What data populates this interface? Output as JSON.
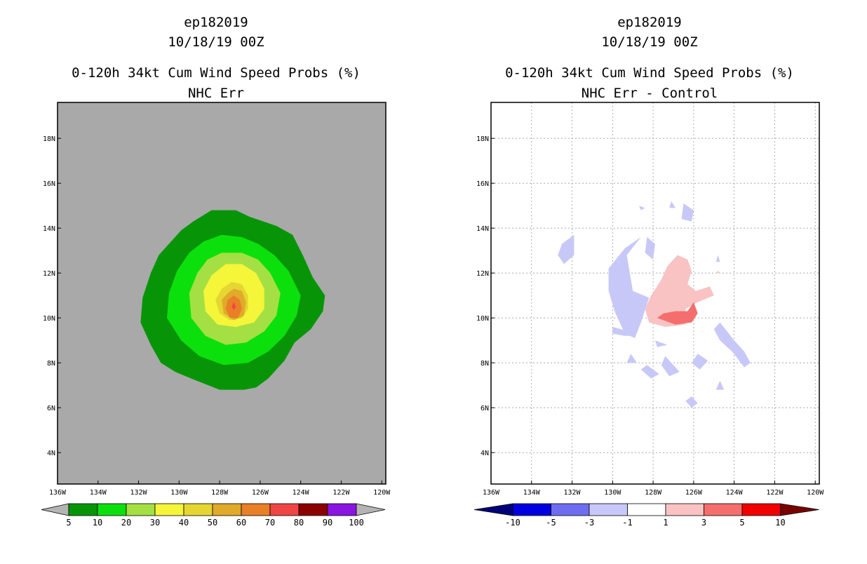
{
  "chart_data": [
    {
      "type": "filled-contour-map",
      "title_lines": [
        "ep182019",
        "10/18/19 00Z",
        "0-120h 34kt Cum Wind Speed Probs (%)",
        "NHC Err"
      ],
      "x_ticks": [
        "136W",
        "134W",
        "132W",
        "130W",
        "128W",
        "126W",
        "124W",
        "122W",
        "120W"
      ],
      "y_ticks": [
        "4N",
        "6N",
        "8N",
        "10N",
        "12N",
        "14N",
        "16N",
        "18N"
      ],
      "xlim_lon": [
        -136,
        -119.8
      ],
      "ylim_lat": [
        2.6,
        19.6
      ],
      "grid": false,
      "background_color": "#a9a9a9",
      "colorbar": {
        "labels": [
          "5",
          "10",
          "20",
          "30",
          "40",
          "50",
          "60",
          "70",
          "80",
          "90",
          "100"
        ],
        "colors": [
          "#079507",
          "#0ce00c",
          "#a4e043",
          "#f5f53a",
          "#e5d631",
          "#e0aa2a",
          "#e97f26",
          "#f04545",
          "#8b0000",
          "#8a15e0"
        ],
        "end_color": "#b4b4b4"
      },
      "contours": [
        {
          "min_pct": 5,
          "color": "#079507",
          "poly": [
            [
              -129.3,
              14.3
            ],
            [
              -128.4,
              14.8
            ],
            [
              -127.2,
              14.8
            ],
            [
              -126.5,
              14.5
            ],
            [
              -125.2,
              14.1
            ],
            [
              -124.4,
              13.7
            ],
            [
              -123.9,
              12.8
            ],
            [
              -123.4,
              11.8
            ],
            [
              -122.8,
              11.0
            ],
            [
              -122.9,
              10.3
            ],
            [
              -123.5,
              9.5
            ],
            [
              -124.3,
              8.9
            ],
            [
              -124.8,
              8.1
            ],
            [
              -125.6,
              7.3
            ],
            [
              -126.2,
              6.9
            ],
            [
              -126.8,
              6.8
            ],
            [
              -128.0,
              6.8
            ],
            [
              -129.4,
              7.3
            ],
            [
              -130.2,
              7.6
            ],
            [
              -130.9,
              8.0
            ],
            [
              -131.4,
              8.8
            ],
            [
              -131.9,
              9.8
            ],
            [
              -131.8,
              10.9
            ],
            [
              -131.4,
              12.0
            ],
            [
              -131.0,
              12.8
            ],
            [
              -130.4,
              13.4
            ],
            [
              -129.9,
              13.9
            ]
          ]
        },
        {
          "min_pct": 10,
          "color": "#0ce00c",
          "poly": [
            [
              -128.8,
              13.4
            ],
            [
              -127.9,
              13.7
            ],
            [
              -126.9,
              13.6
            ],
            [
              -126.1,
              13.3
            ],
            [
              -125.3,
              12.8
            ],
            [
              -124.6,
              12.1
            ],
            [
              -124.0,
              11.0
            ],
            [
              -124.2,
              10.1
            ],
            [
              -124.8,
              9.2
            ],
            [
              -125.6,
              8.5
            ],
            [
              -126.6,
              8.0
            ],
            [
              -127.8,
              7.9
            ],
            [
              -129.0,
              8.3
            ],
            [
              -129.9,
              9.0
            ],
            [
              -130.6,
              10.0
            ],
            [
              -130.5,
              11.1
            ],
            [
              -130.1,
              12.1
            ],
            [
              -129.5,
              12.9
            ]
          ]
        },
        {
          "min_pct": 20,
          "color": "#a4e043",
          "poly": [
            [
              -127.9,
              12.9
            ],
            [
              -126.9,
              12.9
            ],
            [
              -126.1,
              12.6
            ],
            [
              -125.5,
              12.0
            ],
            [
              -125.0,
              11.1
            ],
            [
              -125.2,
              10.1
            ],
            [
              -125.8,
              9.4
            ],
            [
              -126.7,
              8.9
            ],
            [
              -127.7,
              8.8
            ],
            [
              -128.7,
              9.2
            ],
            [
              -129.4,
              10.0
            ],
            [
              -129.5,
              11.1
            ],
            [
              -129.1,
              12.0
            ],
            [
              -128.6,
              12.6
            ]
          ]
        },
        {
          "min_pct": 30,
          "color": "#f5f53a",
          "poly": [
            [
              -127.7,
              12.4
            ],
            [
              -126.9,
              12.4
            ],
            [
              -126.2,
              12.0
            ],
            [
              -125.8,
              11.3
            ],
            [
              -125.8,
              10.4
            ],
            [
              -126.3,
              9.8
            ],
            [
              -127.2,
              9.6
            ],
            [
              -128.1,
              9.7
            ],
            [
              -128.7,
              10.3
            ],
            [
              -128.8,
              11.2
            ],
            [
              -128.4,
              11.9
            ]
          ]
        },
        {
          "min_pct": 40,
          "color": "#e5d631",
          "poly": [
            [
              -127.4,
              11.6
            ],
            [
              -126.9,
              11.5
            ],
            [
              -126.6,
              11.0
            ],
            [
              -126.6,
              10.4
            ],
            [
              -126.9,
              10.0
            ],
            [
              -127.5,
              9.9
            ],
            [
              -128.0,
              10.2
            ],
            [
              -128.2,
              10.8
            ],
            [
              -127.9,
              11.3
            ]
          ]
        },
        {
          "min_pct": 50,
          "color": "#e0aa2a",
          "poly": [
            [
              -127.3,
              11.3
            ],
            [
              -126.9,
              11.2
            ],
            [
              -126.7,
              10.7
            ],
            [
              -126.8,
              10.1
            ],
            [
              -127.3,
              9.9
            ],
            [
              -127.8,
              10.2
            ],
            [
              -127.9,
              10.8
            ],
            [
              -127.6,
              11.1
            ]
          ]
        },
        {
          "min_pct": 60,
          "color": "#e97f26",
          "poly": [
            [
              -127.3,
              11.0
            ],
            [
              -127.0,
              10.8
            ],
            [
              -126.9,
              10.4
            ],
            [
              -127.1,
              10.0
            ],
            [
              -127.5,
              10.0
            ],
            [
              -127.7,
              10.4
            ],
            [
              -127.6,
              10.8
            ]
          ]
        },
        {
          "min_pct": 70,
          "color": "#f04545",
          "poly": [
            [
              -127.3,
              10.7
            ],
            [
              -127.2,
              10.5
            ],
            [
              -127.3,
              10.35
            ],
            [
              -127.4,
              10.5
            ]
          ]
        }
      ]
    },
    {
      "type": "filled-contour-map",
      "title_lines": [
        "ep182019",
        "10/18/19 00Z",
        "0-120h 34kt Cum Wind Speed Probs (%)",
        "NHC Err - Control"
      ],
      "x_ticks": [
        "136W",
        "134W",
        "132W",
        "130W",
        "128W",
        "126W",
        "124W",
        "122W",
        "120W"
      ],
      "y_ticks": [
        "4N",
        "6N",
        "8N",
        "10N",
        "12N",
        "14N",
        "16N",
        "18N"
      ],
      "xlim_lon": [
        -136,
        -119.8
      ],
      "ylim_lat": [
        2.6,
        19.6
      ],
      "grid": true,
      "background_color": "#ffffff",
      "colorbar": {
        "labels": [
          "-10",
          "-5",
          "-3",
          "-1",
          "1",
          "3",
          "5",
          "10"
        ],
        "colors": [
          "#0000e0",
          "#6d6df0",
          "#c8c8f8",
          "#ffffff",
          "#f9c3c3",
          "#f56e6e",
          "#f00000"
        ],
        "left_end_color": "#00007a",
        "right_end_color": "#7a0000"
      },
      "contours": [
        {
          "min_pct": -3,
          "color": "#c8c8f8",
          "poly": [
            [
              -130.2,
              12.2
            ],
            [
              -129.4,
              13.1
            ],
            [
              -128.6,
              13.6
            ],
            [
              -129.3,
              12.8
            ],
            [
              -129.0,
              11.2
            ],
            [
              -128.2,
              10.9
            ],
            [
              -128.6,
              9.8
            ],
            [
              -128.9,
              9.1
            ],
            [
              -129.4,
              9.3
            ],
            [
              -129.9,
              10.3
            ],
            [
              -130.2,
              11.2
            ]
          ]
        },
        {
          "min_pct": -3,
          "color": "#c8c8f8",
          "poly": [
            [
              -132.5,
              13.3
            ],
            [
              -131.9,
              13.7
            ],
            [
              -131.9,
              12.8
            ],
            [
              -132.4,
              12.4
            ],
            [
              -132.7,
              12.8
            ]
          ]
        },
        {
          "min_pct": -3,
          "color": "#c8c8f8",
          "poly": [
            [
              -128.3,
              13.6
            ],
            [
              -127.9,
              13.3
            ],
            [
              -128.0,
              12.6
            ],
            [
              -128.4,
              12.9
            ]
          ]
        },
        {
          "min_pct": -3,
          "color": "#c8c8f8",
          "poly": [
            [
              -126.5,
              15.1
            ],
            [
              -126.0,
              14.8
            ],
            [
              -126.1,
              14.3
            ],
            [
              -126.6,
              14.4
            ]
          ]
        },
        {
          "min_pct": -3,
          "color": "#c8c8f8",
          "poly": [
            [
              -128.7,
              15.0
            ],
            [
              -128.4,
              14.9
            ],
            [
              -128.6,
              14.8
            ]
          ]
        },
        {
          "min_pct": -3,
          "color": "#c8c8f8",
          "poly": [
            [
              -127.1,
              15.2
            ],
            [
              -126.9,
              14.9
            ],
            [
              -127.2,
              14.9
            ]
          ]
        },
        {
          "min_pct": -3,
          "color": "#c8c8f8",
          "poly": [
            [
              -124.7,
              9.8
            ],
            [
              -124.0,
              9.0
            ],
            [
              -123.5,
              8.5
            ],
            [
              -123.2,
              8.0
            ],
            [
              -123.5,
              7.8
            ],
            [
              -124.1,
              8.5
            ],
            [
              -124.7,
              9.0
            ],
            [
              -125.0,
              9.5
            ]
          ]
        },
        {
          "min_pct": -3,
          "color": "#c8c8f8",
          "poly": [
            [
              -130.0,
              9.6
            ],
            [
              -129.2,
              9.4
            ],
            [
              -128.9,
              9.2
            ],
            [
              -129.4,
              9.2
            ],
            [
              -130.0,
              9.3
            ]
          ]
        },
        {
          "min_pct": -3,
          "color": "#c8c8f8",
          "poly": [
            [
              -127.4,
              8.3
            ],
            [
              -126.7,
              7.6
            ],
            [
              -127.2,
              7.4
            ],
            [
              -127.6,
              7.9
            ]
          ]
        },
        {
          "min_pct": -3,
          "color": "#c8c8f8",
          "poly": [
            [
              -129.1,
              8.4
            ],
            [
              -128.8,
              8.0
            ],
            [
              -129.3,
              8.0
            ]
          ]
        },
        {
          "min_pct": -3,
          "color": "#c8c8f8",
          "poly": [
            [
              -127.9,
              9.0
            ],
            [
              -127.3,
              8.8
            ],
            [
              -127.8,
              8.7
            ]
          ]
        },
        {
          "min_pct": -3,
          "color": "#c8c8f8",
          "poly": [
            [
              -128.3,
              7.9
            ],
            [
              -127.7,
              7.5
            ],
            [
              -128.1,
              7.3
            ],
            [
              -128.6,
              7.7
            ]
          ]
        },
        {
          "min_pct": -3,
          "color": "#c8c8f8",
          "poly": [
            [
              -125.8,
              8.4
            ],
            [
              -125.3,
              8.1
            ],
            [
              -125.7,
              7.7
            ],
            [
              -126.1,
              8.0
            ]
          ]
        },
        {
          "min_pct": -3,
          "color": "#c8c8f8",
          "poly": [
            [
              -124.7,
              7.2
            ],
            [
              -124.5,
              6.8
            ],
            [
              -124.9,
              6.8
            ]
          ]
        },
        {
          "min_pct": -3,
          "color": "#c8c8f8",
          "poly": [
            [
              -126.1,
              6.5
            ],
            [
              -125.8,
              6.2
            ],
            [
              -126.1,
              6.0
            ],
            [
              -126.4,
              6.3
            ]
          ]
        },
        {
          "min_pct": -3,
          "color": "#c8c8f8",
          "poly": [
            [
              -124.8,
              12.8
            ],
            [
              -124.7,
              12.5
            ],
            [
              -124.9,
              12.5
            ]
          ]
        },
        {
          "min_pct": 1,
          "color": "#f9c3c3",
          "poly": [
            [
              -126.8,
              12.8
            ],
            [
              -126.3,
              12.6
            ],
            [
              -126.1,
              12.1
            ],
            [
              -126.3,
              11.5
            ],
            [
              -125.9,
              11.2
            ],
            [
              -125.2,
              11.4
            ],
            [
              -125.0,
              11.0
            ],
            [
              -125.8,
              10.7
            ],
            [
              -126.4,
              10.4
            ],
            [
              -126.4,
              9.7
            ],
            [
              -127.4,
              9.6
            ],
            [
              -128.2,
              9.8
            ],
            [
              -128.4,
              10.4
            ],
            [
              -128.1,
              11.0
            ],
            [
              -127.6,
              11.7
            ],
            [
              -127.3,
              12.3
            ]
          ]
        },
        {
          "min_pct": 3,
          "color": "#f56e6e",
          "poly": [
            [
              -126.0,
              10.7
            ],
            [
              -125.8,
              10.2
            ],
            [
              -126.1,
              9.8
            ],
            [
              -126.9,
              9.7
            ],
            [
              -127.8,
              10.0
            ],
            [
              -127.5,
              10.2
            ],
            [
              -126.9,
              10.3
            ],
            [
              -126.3,
              10.3
            ]
          ]
        },
        {
          "min_pct": 1,
          "color": "#f9c3c3",
          "poly": [
            [
              -124.8,
              12.1
            ],
            [
              -124.7,
              12.0
            ],
            [
              -124.9,
              12.0
            ]
          ]
        }
      ]
    }
  ]
}
